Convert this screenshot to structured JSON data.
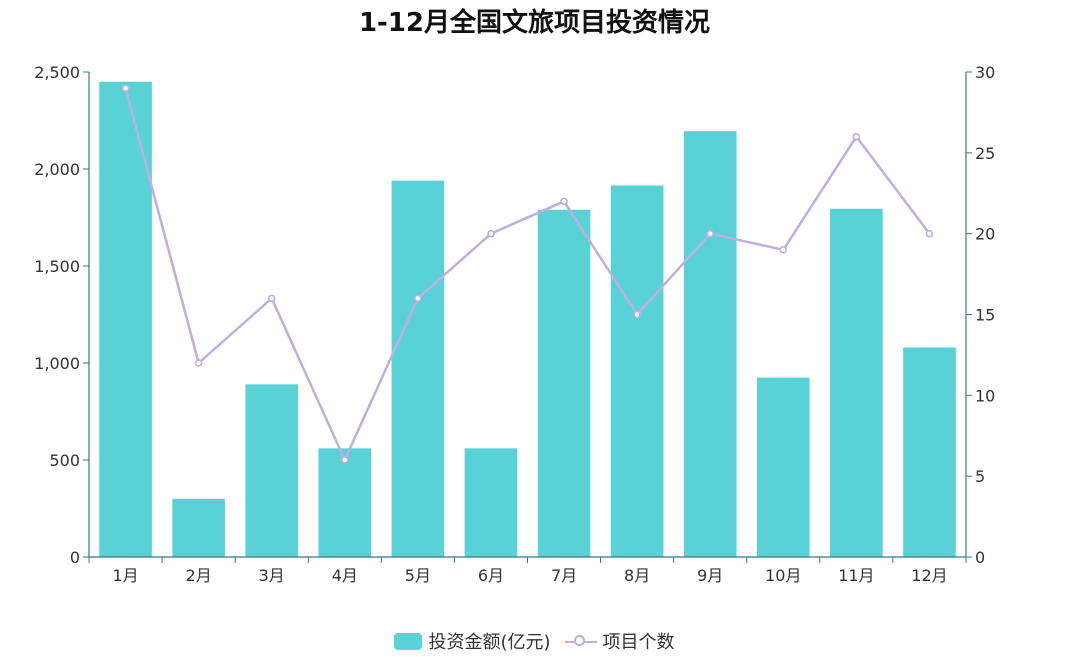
{
  "chart_data": {
    "type": "bar",
    "title": "1-12月全国文旅项目投资情况",
    "categories": [
      "1月",
      "2月",
      "3月",
      "4月",
      "5月",
      "6月",
      "7月",
      "8月",
      "9月",
      "10月",
      "11月",
      "12月"
    ],
    "series": [
      {
        "name": "投资金额(亿元)",
        "type": "bar",
        "axis": "left",
        "color": "#58d2d6",
        "values": [
          2450,
          300,
          890,
          560,
          1940,
          560,
          1790,
          1915,
          2195,
          925,
          1795,
          1080
        ]
      },
      {
        "name": "项目个数",
        "type": "line",
        "axis": "right",
        "color": "#c0aee0",
        "values": [
          29,
          12,
          16,
          6,
          16,
          20,
          22,
          15,
          20,
          19,
          26,
          20
        ]
      }
    ],
    "ylim_left": [
      0,
      2500
    ],
    "yticks_left": [
      "0",
      "500",
      "1,000",
      "1,500",
      "2,000",
      "2,500"
    ],
    "ylim_right": [
      0,
      30
    ],
    "yticks_right": [
      "0",
      "5",
      "10",
      "15",
      "20",
      "25",
      "30"
    ],
    "grid": false,
    "legend_position": "bottom-center"
  }
}
